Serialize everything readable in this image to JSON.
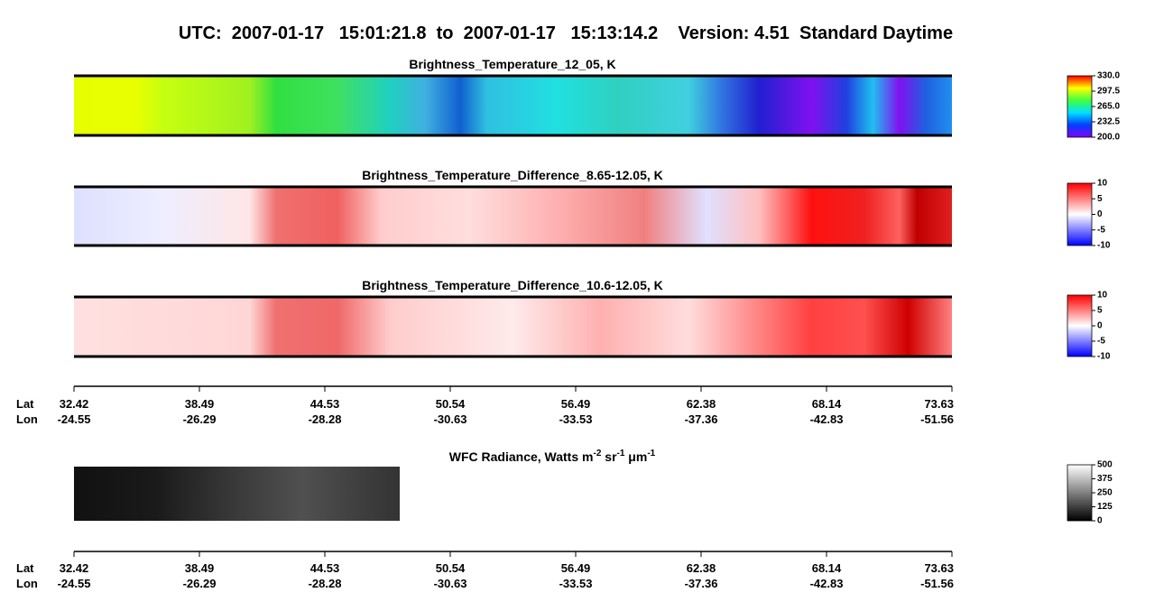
{
  "title": "UTC:  2007-01-17   15:01:21.8  to  2007-01-17   15:13:14.2    Version: 4.51  Standard Daytime",
  "panels": [
    {
      "title": "Brightness_Temperature_12_05, K",
      "colorbar": [
        "330.0",
        "297.5",
        "265.0",
        "232.5",
        "200.0"
      ]
    },
    {
      "title": "Brightness_Temperature_Difference_8.65-12.05, K",
      "colorbar": [
        "10",
        "5",
        "0",
        "-5",
        "-10"
      ]
    },
    {
      "title": "Brightness_Temperature_Difference_10.6-12.05, K",
      "colorbar": [
        "10",
        "5",
        "0",
        "-5",
        "-10"
      ]
    }
  ],
  "wfc": {
    "title": [
      "WFC Radiance, Watts m",
      "-2",
      " sr",
      "-1",
      " μm",
      "-1"
    ],
    "colorbar": [
      "500",
      "375",
      "250",
      "125",
      "0"
    ]
  },
  "axis": {
    "lat_label": "Lat",
    "lon_label": "Lon",
    "lat": [
      "32.42",
      "38.49",
      "44.53",
      "50.54",
      "56.49",
      "62.38",
      "68.14",
      "73.63"
    ],
    "lon": [
      "-24.55",
      "-26.29",
      "-28.28",
      "-30.63",
      "-33.53",
      "-37.36",
      "-42.83",
      "-51.56"
    ]
  }
}
